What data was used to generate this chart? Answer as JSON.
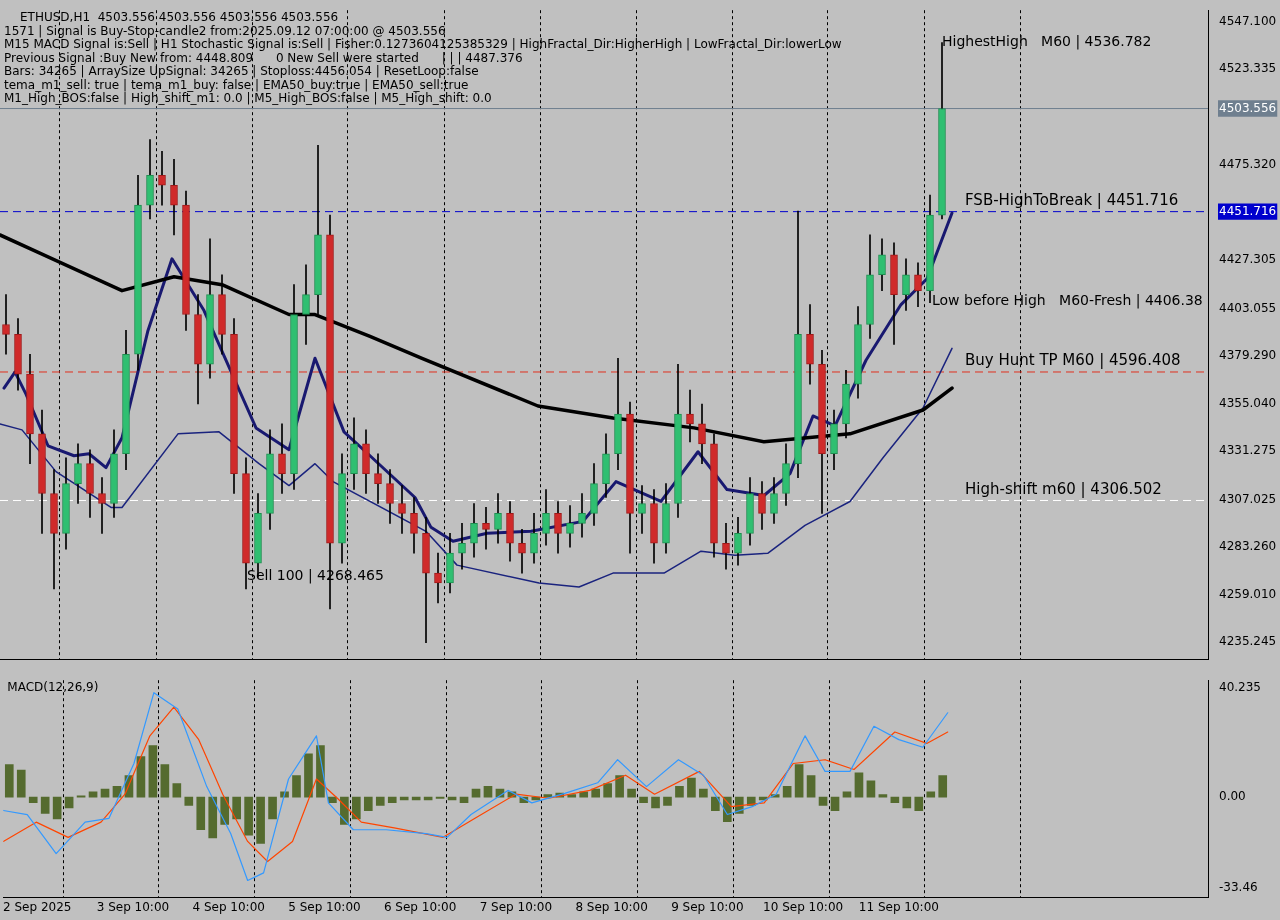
{
  "chart_data": [
    {
      "type": "candlestick",
      "title": "ETHUSD,H1  4503.556 4503.556 4503.556 4503.556",
      "annotations": [
        "1571 | Signal is Buy-Stop-candle2 from:2025.09.12 07:00:00 @ 4503.556",
        "M15 MACD Signal is:Sell | H1 Stochastic Signal is:Sell | Fisher:0.1273604125385329 | HighFractal_Dir:HigherHigh | LowFractal_Dir:lowerLow",
        "Previous Signal :Buy New from: 4448.809      0 New Sell were started      | | | 4487.376",
        "Bars: 34265 | ArraySize UpSignal: 34265 | Stoploss:4456.054 | ResetLoop:false",
        "tema_m1_sell: true | tema_m1_buy: false | EMA50_buy:true | EMA50_sell:true",
        "M1_High_BOS:false | High_shift_m1: 0.0 | M5_High_BOS:false | M5_High_shift: 0.0",
        {
          "text": "Sell 100 | 4268.465",
          "x": "2025-09-04T15:15",
          "y": 4268.465
        },
        {
          "text": "HighestHigh   M60 | 4536.782",
          "x": "2025-09-11T21:00",
          "y": 4536.782
        },
        {
          "text": "Low before High   M60-Fresh | 4406.38",
          "x": "2025-09-11T18:30",
          "y": 4406.38
        }
      ],
      "x": [
        "2025-09-02T03:00",
        "2025-09-02T06:00",
        "2025-09-02T09:00",
        "2025-09-02T12:00",
        "2025-09-02T15:00",
        "2025-09-02T18:00",
        "2025-09-02T21:00",
        "2025-09-03T00:00",
        "2025-09-03T03:00",
        "2025-09-03T06:00",
        "2025-09-03T09:00",
        "2025-09-03T12:00",
        "2025-09-03T15:00",
        "2025-09-03T18:00",
        "2025-09-03T21:00",
        "2025-09-04T00:00",
        "2025-09-04T03:00",
        "2025-09-04T06:00",
        "2025-09-04T09:00",
        "2025-09-04T12:00",
        "2025-09-04T15:00",
        "2025-09-04T18:00",
        "2025-09-04T21:00",
        "2025-09-05T00:00",
        "2025-09-05T03:00",
        "2025-09-05T06:00",
        "2025-09-05T09:00",
        "2025-09-05T12:00",
        "2025-09-05T15:00",
        "2025-09-05T18:00",
        "2025-09-05T21:00",
        "2025-09-06T00:00",
        "2025-09-06T03:00",
        "2025-09-06T06:00",
        "2025-09-06T09:00",
        "2025-09-06T12:00",
        "2025-09-06T15:00",
        "2025-09-06T18:00",
        "2025-09-06T21:00",
        "2025-09-07T00:00",
        "2025-09-07T03:00",
        "2025-09-07T06:00",
        "2025-09-07T09:00",
        "2025-09-07T12:00",
        "2025-09-07T15:00",
        "2025-09-07T18:00",
        "2025-09-07T21:00",
        "2025-09-08T00:00",
        "2025-09-08T03:00",
        "2025-09-08T06:00",
        "2025-09-08T09:00",
        "2025-09-08T12:00",
        "2025-09-08T15:00",
        "2025-09-08T18:00",
        "2025-09-08T21:00",
        "2025-09-09T00:00",
        "2025-09-09T03:00",
        "2025-09-09T06:00",
        "2025-09-09T09:00",
        "2025-09-09T12:00",
        "2025-09-09T15:00",
        "2025-09-09T18:00",
        "2025-09-09T21:00",
        "2025-09-10T00:00",
        "2025-09-10T03:00",
        "2025-09-10T06:00",
        "2025-09-10T09:00",
        "2025-09-10T12:00",
        "2025-09-10T15:00",
        "2025-09-10T18:00",
        "2025-09-10T21:00",
        "2025-09-11T00:00",
        "2025-09-11T03:00",
        "2025-09-11T06:00",
        "2025-09-11T09:00",
        "2025-09-11T12:00",
        "2025-09-11T15:00",
        "2025-09-11T18:00",
        "2025-09-11T21:00"
      ],
      "ohlc": [
        [
          4395,
          4410,
          4380,
          4390
        ],
        [
          4390,
          4398,
          4362,
          4370
        ],
        [
          4370,
          4380,
          4325,
          4340
        ],
        [
          4340,
          4352,
          4290,
          4310
        ],
        [
          4310,
          4322,
          4262,
          4290
        ],
        [
          4290,
          4328,
          4282,
          4315
        ],
        [
          4315,
          4335,
          4305,
          4325
        ],
        [
          4325,
          4332,
          4298,
          4310
        ],
        [
          4310,
          4318,
          4290,
          4305
        ],
        [
          4305,
          4342,
          4298,
          4330
        ],
        [
          4330,
          4392,
          4322,
          4380
        ],
        [
          4380,
          4470,
          4372,
          4455
        ],
        [
          4455,
          4488,
          4448,
          4470
        ],
        [
          4470,
          4482,
          4455,
          4465
        ],
        [
          4465,
          4478,
          4440,
          4455
        ],
        [
          4455,
          4462,
          4392,
          4400
        ],
        [
          4400,
          4410,
          4355,
          4375
        ],
        [
          4375,
          4438,
          4368,
          4410
        ],
        [
          4410,
          4420,
          4380,
          4390
        ],
        [
          4390,
          4398,
          4310,
          4320
        ],
        [
          4320,
          4328,
          4262,
          4275
        ],
        [
          4275,
          4310,
          4268,
          4300
        ],
        [
          4300,
          4342,
          4292,
          4330
        ],
        [
          4330,
          4345,
          4310,
          4320
        ],
        [
          4320,
          4415,
          4312,
          4400
        ],
        [
          4400,
          4425,
          4385,
          4410
        ],
        [
          4410,
          4485,
          4400,
          4440
        ],
        [
          4440,
          4450,
          4252,
          4285
        ],
        [
          4285,
          4330,
          4275,
          4320
        ],
        [
          4320,
          4348,
          4312,
          4335
        ],
        [
          4335,
          4342,
          4310,
          4320
        ],
        [
          4320,
          4330,
          4305,
          4315
        ],
        [
          4315,
          4322,
          4295,
          4305
        ],
        [
          4305,
          4314,
          4290,
          4300
        ],
        [
          4300,
          4308,
          4280,
          4290
        ],
        [
          4290,
          4298,
          4235,
          4270
        ],
        [
          4270,
          4280,
          4255,
          4265
        ],
        [
          4265,
          4290,
          4260,
          4280
        ],
        [
          4280,
          4295,
          4272,
          4285
        ],
        [
          4285,
          4305,
          4278,
          4295
        ],
        [
          4295,
          4303,
          4282,
          4292
        ],
        [
          4292,
          4310,
          4285,
          4300
        ],
        [
          4300,
          4306,
          4276,
          4285
        ],
        [
          4285,
          4292,
          4270,
          4280
        ],
        [
          4280,
          4300,
          4275,
          4290
        ],
        [
          4290,
          4312,
          4284,
          4300
        ],
        [
          4300,
          4306,
          4280,
          4290
        ],
        [
          4290,
          4304,
          4283,
          4295
        ],
        [
          4295,
          4310,
          4288,
          4300
        ],
        [
          4300,
          4325,
          4294,
          4315
        ],
        [
          4315,
          4340,
          4308,
          4330
        ],
        [
          4330,
          4378,
          4322,
          4350
        ],
        [
          4350,
          4356,
          4280,
          4300
        ],
        [
          4300,
          4314,
          4290,
          4305
        ],
        [
          4305,
          4312,
          4275,
          4285
        ],
        [
          4285,
          4315,
          4280,
          4305
        ],
        [
          4305,
          4375,
          4298,
          4350
        ],
        [
          4350,
          4362,
          4336,
          4345
        ],
        [
          4345,
          4355,
          4325,
          4335
        ],
        [
          4335,
          4340,
          4278,
          4285
        ],
        [
          4285,
          4295,
          4272,
          4280
        ],
        [
          4280,
          4298,
          4274,
          4290
        ],
        [
          4290,
          4318,
          4284,
          4310
        ],
        [
          4310,
          4316,
          4292,
          4300
        ],
        [
          4300,
          4318,
          4295,
          4310
        ],
        [
          4310,
          4335,
          4304,
          4325
        ],
        [
          4325,
          4452,
          4318,
          4390
        ],
        [
          4390,
          4405,
          4365,
          4375
        ],
        [
          4375,
          4382,
          4300,
          4330
        ],
        [
          4330,
          4352,
          4322,
          4345
        ],
        [
          4345,
          4372,
          4338,
          4365
        ],
        [
          4365,
          4404,
          4358,
          4395
        ],
        [
          4395,
          4440,
          4388,
          4420
        ],
        [
          4420,
          4438,
          4412,
          4430
        ],
        [
          4430,
          4436,
          4385,
          4410
        ],
        [
          4410,
          4428,
          4402,
          4420
        ],
        [
          4420,
          4426,
          4404,
          4412
        ],
        [
          4412,
          4460,
          4406,
          4450
        ],
        [
          4450,
          4536.782,
          4448,
          4503.556
        ]
      ],
      "series": [
        {
          "type": "line",
          "color": "#000000",
          "x": [
            "2025-09-02T01:30",
            "2025-09-03T08:00",
            "2025-09-03T21:00",
            "2025-09-04T09:00",
            "2025-09-05T01:45",
            "2025-09-05T08:15",
            "2025-09-05T22:00",
            "2025-09-06T11:00",
            "2025-09-07T16:00",
            "2025-09-08T10:45",
            "2025-09-09T07:00",
            "2025-09-10T00:30",
            "2025-09-10T22:00",
            "2025-09-11T16:15",
            "2025-09-11T23:30"
          ],
          "values": [
            4440,
            4412,
            4419,
            4415,
            4400,
            4400,
            4389,
            4378,
            4354,
            4348,
            4343,
            4336,
            4340,
            4352,
            4363
          ]
        },
        {
          "type": "line",
          "color": "#191970",
          "x": [
            "2025-09-02T02:30",
            "2025-09-02T05:15",
            "2025-09-02T08:00",
            "2025-09-02T13:30",
            "2025-09-02T20:00",
            "2025-09-02T23:45",
            "2025-09-03T04:00",
            "2025-09-03T08:00",
            "2025-09-03T14:30",
            "2025-09-03T20:30",
            "2025-09-04T04:30",
            "2025-09-04T17:30",
            "2025-09-05T01:45",
            "2025-09-05T08:15",
            "2025-09-05T15:30",
            "2025-09-05T22:00",
            "2025-09-06T09:15",
            "2025-09-06T13:15",
            "2025-09-06T18:45",
            "2025-09-07T03:15",
            "2025-09-07T14:15",
            "2025-09-08T03:15",
            "2025-09-08T11:30",
            "2025-09-08T22:45",
            "2025-09-09T08:00",
            "2025-09-09T15:15",
            "2025-09-10T00:30",
            "2025-09-10T07:00",
            "2025-09-10T12:45",
            "2025-09-10T18:15",
            "2025-09-11T02:00",
            "2025-09-11T10:45",
            "2025-09-11T17:15",
            "2025-09-11T23:30"
          ],
          "values": [
            4363,
            4371,
            4360,
            4334,
            4329,
            4330,
            4323,
            4338,
            4392,
            4428,
            4402,
            4343,
            4332,
            4378,
            4341,
            4329,
            4308,
            4293,
            4286,
            4290,
            4291,
            4296,
            4316,
            4306,
            4331,
            4312,
            4309,
            4320,
            4349,
            4344,
            4377,
            4405,
            4418,
            4451
          ]
        },
        {
          "type": "line",
          "color": "#1a237e",
          "x": [
            "2025-09-02T01:30",
            "2025-09-02T07:00",
            "2025-09-02T15:30",
            "2025-09-03T05:15",
            "2025-09-03T08:00",
            "2025-09-03T22:00",
            "2025-09-04T08:15",
            "2025-09-04T18:15",
            "2025-09-05T01:45",
            "2025-09-05T08:15",
            "2025-09-05T12:45",
            "2025-09-06T12:00",
            "2025-09-06T19:45",
            "2025-09-07T16:15",
            "2025-09-08T02:15",
            "2025-09-08T10:45",
            "2025-09-08T23:30",
            "2025-09-09T08:45",
            "2025-09-09T17:15",
            "2025-09-10T01:30",
            "2025-09-10T10:45",
            "2025-09-10T22:00",
            "2025-09-11T06:15",
            "2025-09-11T16:15",
            "2025-09-11T23:30"
          ],
          "values": [
            4345,
            4342,
            4321,
            4303,
            4303,
            4340,
            4341,
            4325,
            4314,
            4325,
            4316,
            4291,
            4274,
            4265,
            4263,
            4270,
            4270,
            4281,
            4279,
            4280,
            4294,
            4306,
            4328,
            4353,
            4383
          ]
        }
      ],
      "ref_lines": [
        {
          "axis": "y",
          "value": 4503.556,
          "color": "#6f7f8f",
          "line_style": "solid"
        },
        {
          "axis": "y",
          "value": 4451.716,
          "label": "FSB-HighToBreak | 4451.716",
          "color": "#0000cd",
          "line_style": "dashed"
        },
        {
          "axis": "y",
          "value": 4371.1,
          "label": "Buy Hunt TP M60 | 4596.408",
          "color": "#e0301e",
          "line_style": "dashed"
        },
        {
          "axis": "y",
          "value": 4306.502,
          "label": "High-shift m60 | 4306.502",
          "color": "#ffffff",
          "line_style": "dashed"
        }
      ],
      "xlim": [
        "2025-09-02T01:30",
        "2025-09-14T15:30"
      ],
      "xticks": [
        {
          "value": "2025-09-02T16:30",
          "label": null
        },
        {
          "value": "2025-09-03T16:30",
          "label": null
        },
        {
          "value": "2025-09-04T16:30",
          "label": null
        },
        {
          "value": "2025-09-05T16:30",
          "label": null
        },
        {
          "value": "2025-09-06T16:30",
          "label": null
        },
        {
          "value": "2025-09-07T16:30",
          "label": null
        },
        {
          "value": "2025-09-08T16:30",
          "label": null
        },
        {
          "value": "2025-09-09T16:30",
          "label": null
        },
        {
          "value": "2025-09-10T16:30",
          "label": null
        },
        {
          "value": "2025-09-11T16:30",
          "label": null
        },
        {
          "value": "2025-09-12T16:30",
          "label": null
        }
      ],
      "ylim": [
        4226.4,
        4553
      ],
      "yticks": [
        {
          "value": 4547.1,
          "label": "4547.100"
        },
        4523.335,
        {
          "value": 4475.32,
          "label": "4475.320"
        },
        4427.305,
        4403.055,
        {
          "value": 4379.29,
          "label": "4379.290"
        },
        {
          "value": 4355.04,
          "label": "4355.040"
        },
        4331.275,
        4307.025,
        {
          "value": 4283.26,
          "label": "4283.260"
        },
        {
          "value": 4259.01,
          "label": "4259.010"
        },
        4235.245,
        4503.556,
        4451.716
      ],
      "grid": "x",
      "tick_labels": "y"
    },
    {
      "type": "bar",
      "title": "MACD(12,26,9)",
      "x": [
        "2025-09-02T03:00",
        "2025-09-02T06:00",
        "2025-09-02T09:00",
        "2025-09-02T12:00",
        "2025-09-02T15:00",
        "2025-09-02T18:00",
        "2025-09-02T21:00",
        "2025-09-03T00:00",
        "2025-09-03T03:00",
        "2025-09-03T06:00",
        "2025-09-03T09:00",
        "2025-09-03T12:00",
        "2025-09-03T15:00",
        "2025-09-03T18:00",
        "2025-09-03T21:00",
        "2025-09-04T00:00",
        "2025-09-04T03:00",
        "2025-09-04T06:00",
        "2025-09-04T09:00",
        "2025-09-04T12:00",
        "2025-09-04T15:00",
        "2025-09-04T18:00",
        "2025-09-04T21:00",
        "2025-09-05T00:00",
        "2025-09-05T03:00",
        "2025-09-05T06:00",
        "2025-09-05T09:00",
        "2025-09-05T12:00",
        "2025-09-05T15:00",
        "2025-09-05T18:00",
        "2025-09-05T21:00",
        "2025-09-06T00:00",
        "2025-09-06T03:00",
        "2025-09-06T06:00",
        "2025-09-06T09:00",
        "2025-09-06T12:00",
        "2025-09-06T15:00",
        "2025-09-06T18:00",
        "2025-09-06T21:00",
        "2025-09-07T00:00",
        "2025-09-07T03:00",
        "2025-09-07T06:00",
        "2025-09-07T09:00",
        "2025-09-07T12:00",
        "2025-09-07T15:00",
        "2025-09-07T18:00",
        "2025-09-07T21:00",
        "2025-09-08T00:00",
        "2025-09-08T03:00",
        "2025-09-08T06:00",
        "2025-09-08T09:00",
        "2025-09-08T12:00",
        "2025-09-08T15:00",
        "2025-09-08T18:00",
        "2025-09-08T21:00",
        "2025-09-09T00:00",
        "2025-09-09T03:00",
        "2025-09-09T06:00",
        "2025-09-09T09:00",
        "2025-09-09T12:00",
        "2025-09-09T15:00",
        "2025-09-09T18:00",
        "2025-09-09T21:00",
        "2025-09-10T00:00",
        "2025-09-10T03:00",
        "2025-09-10T06:00",
        "2025-09-10T09:00",
        "2025-09-10T12:00",
        "2025-09-10T15:00",
        "2025-09-10T18:00",
        "2025-09-10T21:00",
        "2025-09-11T00:00",
        "2025-09-11T03:00",
        "2025-09-11T06:00",
        "2025-09-11T09:00",
        "2025-09-11T12:00",
        "2025-09-11T15:00",
        "2025-09-11T18:00",
        "2025-09-11T21:00"
      ],
      "series": [
        {
          "type": "bar",
          "color": "#556b2f",
          "values": [
            12,
            10,
            -2,
            -6,
            -8,
            -4,
            0.5,
            2,
            3,
            4,
            8,
            15,
            19,
            12,
            5,
            -3,
            -12,
            -15,
            -10,
            -8,
            -14,
            -17,
            -8,
            2,
            8,
            16,
            19,
            -2,
            -10,
            -8,
            -5,
            -3,
            -2,
            -1,
            -1,
            -1,
            -0.5,
            -1,
            -2,
            3,
            4,
            3,
            2,
            -2,
            -1,
            1,
            1.5,
            1,
            2,
            3,
            5,
            8,
            3,
            -2,
            -4,
            -3,
            4,
            7,
            3,
            -5,
            -9,
            -6,
            -3,
            -1,
            1,
            4,
            12,
            8,
            -3,
            -5,
            2,
            9,
            6,
            1,
            -2,
            -4,
            -5,
            2,
            8
          ]
        },
        {
          "type": "line",
          "color": "#3399ff",
          "x": [
            "2025-09-02T01:30",
            "2025-09-02T07:30",
            "2025-09-02T14:45",
            "2025-09-02T22:00",
            "2025-09-03T04:00",
            "2025-09-03T10:15",
            "2025-09-03T15:15",
            "2025-09-03T21:15",
            "2025-09-04T04:30",
            "2025-09-04T10:30",
            "2025-09-04T14:45",
            "2025-09-04T18:45",
            "2025-09-05T01:00",
            "2025-09-05T08:00",
            "2025-09-05T11:00",
            "2025-09-05T17:15",
            "2025-09-06T01:30",
            "2025-09-06T11:30",
            "2025-09-06T16:45",
            "2025-09-06T22:45",
            "2025-09-07T08:00",
            "2025-09-07T14:00",
            "2025-09-07T22:15",
            "2025-09-08T06:30",
            "2025-09-08T11:30",
            "2025-09-08T18:45",
            "2025-09-09T02:45",
            "2025-09-09T09:00",
            "2025-09-09T15:00",
            "2025-09-09T21:15",
            "2025-09-10T03:15",
            "2025-09-10T10:30",
            "2025-09-10T15:30",
            "2025-09-10T21:45",
            "2025-09-11T03:45",
            "2025-09-11T10:00",
            "2025-09-11T16:00",
            "2025-09-11T22:15"
          ],
          "values": [
            -4.9,
            -6.4,
            -20.8,
            -9.2,
            -7.8,
            12.4,
            38.5,
            32.5,
            3.9,
            -13.4,
            -30.7,
            -27.9,
            6.7,
            22.6,
            -2.1,
            -12,
            -12,
            -13.4,
            -14.8,
            -6.4,
            2.5,
            -2.1,
            1.4,
            5.3,
            13.8,
            3.9,
            13.8,
            8.1,
            -6.4,
            -3.5,
            1.1,
            22.6,
            9.5,
            9.5,
            26.1,
            21.2,
            18.4,
            31.1
          ]
        },
        {
          "type": "line",
          "color": "#ff4500",
          "x": [
            "2025-09-02T01:30",
            "2025-09-02T09:45",
            "2025-09-02T17:45",
            "2025-09-03T02:00",
            "2025-09-03T08:00",
            "2025-09-03T14:15",
            "2025-09-03T20:15",
            "2025-09-04T02:30",
            "2025-09-04T08:30",
            "2025-09-04T14:45",
            "2025-09-04T19:45",
            "2025-09-05T02:00",
            "2025-09-05T08:00",
            "2025-09-05T13:15",
            "2025-09-05T19:15",
            "2025-09-06T03:30",
            "2025-09-06T15:45",
            "2025-09-06T23:45",
            "2025-09-07T10:00",
            "2025-09-07T18:15",
            "2025-09-08T04:30",
            "2025-09-08T13:30",
            "2025-09-08T20:45",
            "2025-09-09T08:00",
            "2025-09-09T16:00",
            "2025-09-10T00:15",
            "2025-09-10T07:30",
            "2025-09-10T15:30",
            "2025-09-10T22:45",
            "2025-09-11T09:00",
            "2025-09-11T17:00",
            "2025-09-11T22:15"
          ],
          "values": [
            -16.3,
            -9.2,
            -14.8,
            -9.2,
            1.1,
            22.6,
            33.2,
            21.2,
            1.1,
            -16.3,
            -23.7,
            -16.3,
            6.7,
            -0.4,
            -9.2,
            -11.3,
            -14.8,
            -7.8,
            1.1,
            -0.4,
            2.5,
            8.1,
            1.1,
            9.5,
            -3.5,
            -2.1,
            12.4,
            13.8,
            10.2,
            24,
            19.8,
            24
          ]
        }
      ],
      "xlim": [
        "2025-09-02T01:30",
        "2025-09-14T15:30"
      ],
      "xticks": [
        {
          "value": "2025-09-02T10:00",
          "label": "2 Sep 2025"
        },
        {
          "value": "2025-09-02T16:30",
          "label": null
        },
        {
          "value": "2025-09-03T10:00",
          "label": "3 Sep 10:00"
        },
        {
          "value": "2025-09-03T16:30",
          "label": null
        },
        {
          "value": "2025-09-04T10:00",
          "label": "4 Sep 10:00"
        },
        {
          "value": "2025-09-04T16:30",
          "label": null
        },
        {
          "value": "2025-09-05T10:00",
          "label": "5 Sep 10:00"
        },
        {
          "value": "2025-09-05T16:30",
          "label": null
        },
        {
          "value": "2025-09-06T10:00",
          "label": "6 Sep 10:00"
        },
        {
          "value": "2025-09-06T16:30",
          "label": null
        },
        {
          "value": "2025-09-07T10:00",
          "label": "7 Sep 10:00"
        },
        {
          "value": "2025-09-07T16:30",
          "label": null
        },
        {
          "value": "2025-09-08T10:00",
          "label": "8 Sep 10:00"
        },
        {
          "value": "2025-09-08T16:30",
          "label": null
        },
        {
          "value": "2025-09-09T10:00",
          "label": "9 Sep 10:00"
        },
        {
          "value": "2025-09-09T16:30",
          "label": null
        },
        {
          "value": "2025-09-10T10:00",
          "label": "10 Sep 10:00"
        },
        {
          "value": "2025-09-10T16:30",
          "label": null
        },
        {
          "value": "2025-09-11T10:00",
          "label": "11 Sep 10:00"
        },
        {
          "value": "2025-09-11T16:30",
          "label": null
        },
        {
          "value": "2025-09-12T16:30",
          "label": null
        }
      ],
      "ylim": [
        -37,
        43.1
      ],
      "yticks": [
        40.235,
        {
          "value": 0,
          "label": "0.00"
        },
        -33.46
      ],
      "grid": "x"
    }
  ]
}
